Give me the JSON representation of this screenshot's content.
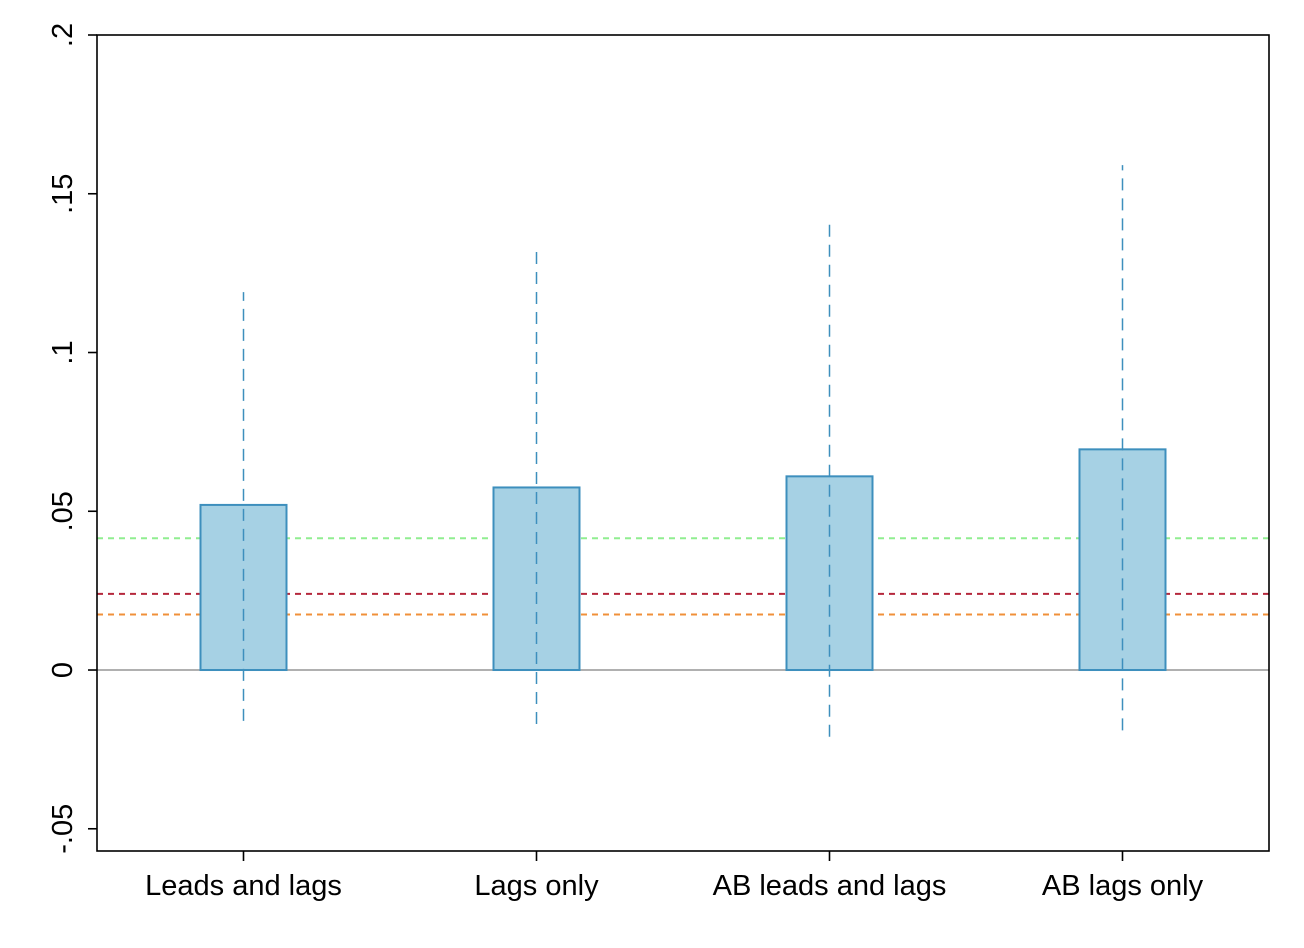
{
  "chart_data": {
    "type": "bar",
    "title": "",
    "xlabel": "",
    "ylabel": "",
    "categories": [
      "Leads and lags",
      "Lags only",
      "AB leads and lags",
      "AB lags only"
    ],
    "values": [
      0.052,
      0.0575,
      0.061,
      0.0695
    ],
    "ci_low": [
      -0.016,
      -0.017,
      -0.021,
      -0.019
    ],
    "ci_high": [
      0.119,
      0.133,
      0.141,
      0.159
    ],
    "ylim": [
      -0.057,
      0.2
    ],
    "yticks": [
      -0.05,
      0,
      0.05,
      0.1,
      0.15,
      0.2
    ],
    "ytick_labels": [
      "-.05",
      "0",
      ".05",
      ".1",
      ".15",
      ".2"
    ],
    "grid": false,
    "reference_lines": [
      {
        "y": 0.0415,
        "color": "#90ee90",
        "style": "dashed"
      },
      {
        "y": 0.024,
        "color": "#b5283c",
        "style": "dashed"
      },
      {
        "y": 0.0175,
        "color": "#f0903a",
        "style": "dashed"
      },
      {
        "y": 0,
        "color": "#b0b0b0",
        "style": "solid"
      }
    ],
    "colors": {
      "bar_fill": "#a6d1e4",
      "bar_stroke": "#3d8fbd",
      "ci_line": "#3d8fbd"
    }
  }
}
